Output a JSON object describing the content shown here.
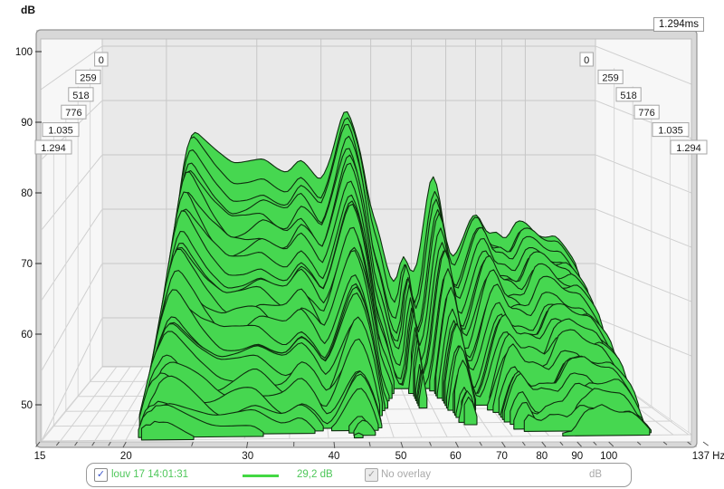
{
  "window": {
    "y_axis_unit": "dB",
    "time_axis_total": "1.294ms"
  },
  "legend": {
    "measurement_label": "louv 17 14:01:31",
    "measurement_checked": true,
    "value_label": "29,2 dB",
    "overlay_label": "No overlay",
    "overlay_checked": true,
    "overlay_unit": "dB",
    "check_glyph": "✓",
    "text_green": "#4ec75a",
    "text_gray": "#a9a9a9"
  },
  "chart_data": {
    "type": "area",
    "subtype": "waterfall-spectral-decay",
    "title": "",
    "xlabel": "Hz",
    "ylabel": "dB",
    "x_axis": {
      "scale": "log",
      "min_hz": 15,
      "max_hz": 137,
      "major_tick_labels": [
        "15",
        "20",
        "30",
        "40",
        "50",
        "60",
        "70",
        "80",
        "90",
        "100",
        "137 Hz"
      ],
      "major_tick_hz": [
        15,
        20,
        30,
        40,
        50,
        60,
        70,
        80,
        90,
        100,
        137
      ],
      "minor_tick_hz": [
        16,
        17,
        18,
        19,
        25,
        35,
        45,
        55,
        65,
        75,
        85,
        95,
        110,
        120,
        130
      ]
    },
    "y_axis": {
      "min_db": 50,
      "max_db": 100,
      "tick_labels": [
        "100",
        "90",
        "80",
        "70",
        "60",
        "50"
      ]
    },
    "time_axis": {
      "unit": "ms",
      "slice_labels": [
        "0",
        "259",
        "518",
        "776",
        "1.035",
        "1.294"
      ],
      "total_label": "1.294ms",
      "n_slices": 30
    },
    "series_t0": {
      "freq_hz": [
        15,
        16.5,
        18,
        19,
        20,
        21,
        21.8,
        22.5,
        23.5,
        25,
        27,
        29,
        31,
        33,
        34.5,
        36.5,
        38.5,
        40,
        42,
        44,
        45,
        46.5,
        48,
        50,
        52,
        54,
        56,
        58,
        60,
        62,
        64,
        66,
        68,
        70,
        72,
        74,
        76,
        78,
        80,
        82,
        84,
        86,
        88,
        90,
        92,
        94,
        96,
        99,
        102,
        105,
        109,
        113,
        117,
        121,
        125,
        128,
        131,
        134,
        137
      ],
      "spl_db": [
        42,
        43,
        46,
        53,
        65,
        76,
        86,
        89.5,
        87.5,
        85.5,
        83.5,
        84,
        84.5,
        83,
        82.5,
        85,
        83,
        81.5,
        85.5,
        92,
        93,
        89.5,
        86,
        78,
        75,
        69,
        66,
        73,
        67,
        69,
        78,
        84,
        80,
        73,
        70,
        72.5,
        74.5,
        77,
        78,
        76.5,
        74,
        73.5,
        74.5,
        73,
        72.5,
        74,
        76,
        76,
        75.5,
        74.5,
        74,
        74.5,
        73,
        71.5,
        70,
        66,
        59,
        51,
        44
      ]
    },
    "decay_db_total": [
      8,
      8,
      10,
      12,
      13,
      18,
      26,
      29,
      28,
      27,
      26,
      26,
      26,
      26,
      26,
      27,
      27,
      28,
      30,
      33,
      33,
      32,
      31,
      30,
      28,
      26,
      24,
      20,
      24,
      25,
      26,
      26,
      25,
      23,
      22,
      22,
      20,
      19,
      18,
      18,
      17,
      16,
      16,
      15,
      15,
      15,
      15,
      15,
      14,
      14,
      14,
      14,
      14,
      14,
      15,
      15,
      14,
      12,
      10
    ],
    "decay_shape": [
      1,
      1,
      1,
      1,
      0.9,
      1,
      1.1,
      1.15,
      1,
      0.85,
      0.75,
      0.75,
      0.8,
      0.8,
      0.8,
      0.9,
      0.85,
      0.8,
      1,
      1.1,
      1.12,
      1.05,
      0.9,
      0.7,
      0.65,
      0.6,
      0.65,
      1.35,
      0.6,
      0.7,
      0.9,
      1,
      0.9,
      0.78,
      0.72,
      0.85,
      0.95,
      1.05,
      1.1,
      1.05,
      1,
      1,
      1,
      1,
      1,
      1.1,
      1.2,
      1.2,
      1.15,
      1.1,
      1.1,
      1.1,
      1.05,
      1,
      1,
      0.9,
      0.85,
      0.8,
      0.8
    ],
    "colors": {
      "slice_fill": "#46d750",
      "slice_stroke": "#0e2d0e",
      "back_wall": "#e9e9e9",
      "side_wall": "#f7f7f7",
      "wall_line": "#c7c7c7",
      "floor_line": "#d2d2d2",
      "frame": "#d8d8d8",
      "axis_text": "#111111"
    }
  }
}
